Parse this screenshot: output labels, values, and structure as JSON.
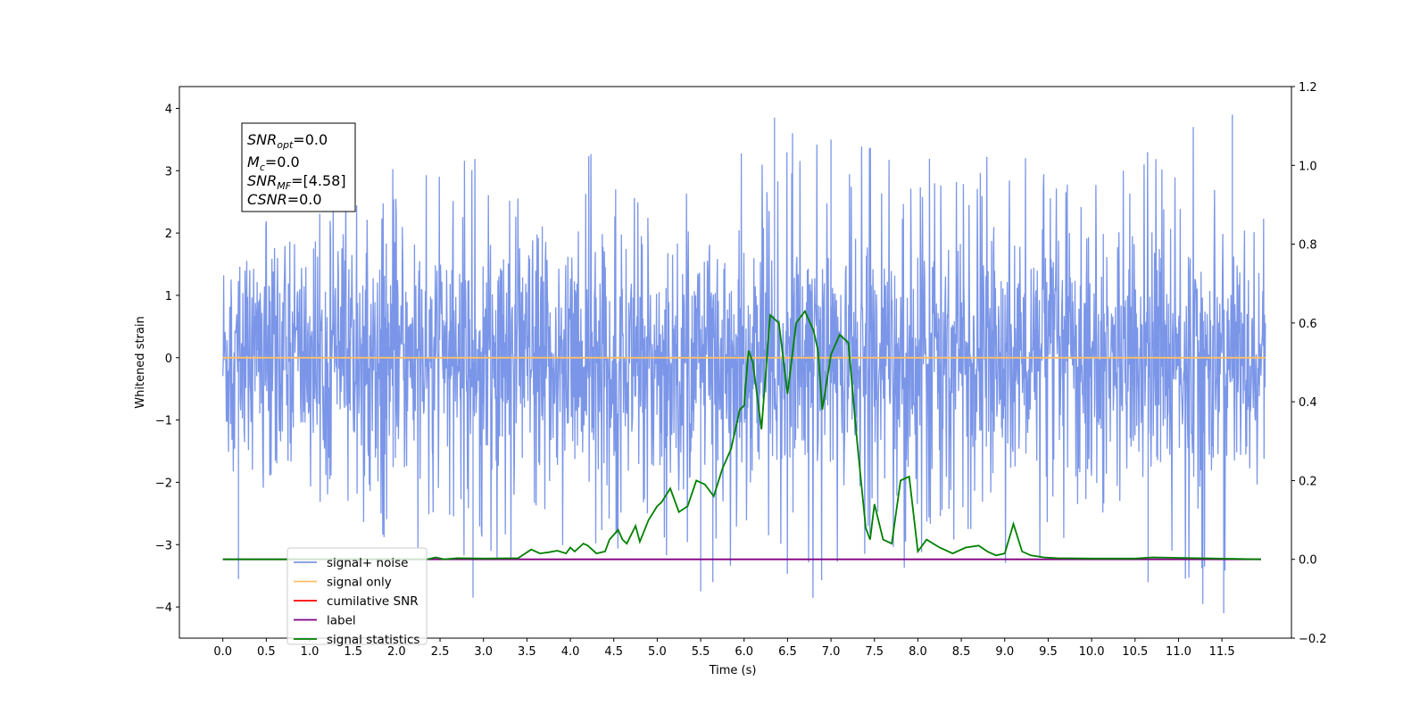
{
  "chart_data": {
    "type": "line",
    "xlabel": "Time (s)",
    "ylabel": "Whitened strain",
    "xlim": [
      -0.5,
      12.3
    ],
    "ylim": [
      -4.5,
      4.35
    ],
    "y2lim": [
      -0.2,
      1.2
    ],
    "x_ticks": [
      "0.0",
      "0.5",
      "1.0",
      "1.5",
      "2.0",
      "2.5",
      "3.0",
      "3.5",
      "4.0",
      "4.5",
      "5.0",
      "5.5",
      "6.0",
      "6.5",
      "7.0",
      "7.5",
      "8.0",
      "8.5",
      "9.0",
      "9.5",
      "10.0",
      "10.5",
      "11.0",
      "11.5"
    ],
    "y_ticks": [
      "4",
      "3",
      "2",
      "1",
      "0",
      "−1",
      "−2",
      "−3",
      "−4"
    ],
    "y2_ticks": [
      "1.2",
      "1.0",
      "0.8",
      "0.6",
      "0.4",
      "0.2",
      "0.0",
      "−0.2"
    ],
    "legend_placement": "lower-left",
    "annotation": {
      "snr_opt": {
        "base": "SNR",
        "sub": "opt",
        "value": "=0.0"
      },
      "mc": {
        "base": "M",
        "sub": "c",
        "value": "=0.0"
      },
      "snr_mf": {
        "base": "SNR",
        "sub": "MF",
        "value": "=[4.58]"
      },
      "csnr": {
        "base": "CSNR",
        "value": "=0.0"
      }
    },
    "series": [
      {
        "name": "signal+ noise",
        "color": "#7b96e8",
        "axis": "left",
        "x_range": [
          0.0,
          12.0
        ],
        "envelope": [
          1.6,
          2.2,
          2.5,
          2.9,
          3.2,
          3.0,
          3.4,
          3.0,
          3.1,
          3.3,
          3.0,
          3.2,
          3.4,
          3.1,
          3.9,
          3.5,
          3.4,
          3.2,
          3.0,
          3.4,
          3.3,
          3.1,
          3.2,
          3.4,
          3.9,
          2.3
        ],
        "outliers": [
          [
            0.18,
            -3.55
          ],
          [
            2.88,
            -3.85
          ],
          [
            5.5,
            -3.75
          ],
          [
            5.64,
            -3.6
          ],
          [
            6.35,
            3.85
          ],
          [
            10.65,
            -3.6
          ],
          [
            11.28,
            -3.95
          ],
          [
            11.52,
            -4.1
          ],
          [
            11.62,
            3.9
          ],
          [
            7.0,
            3.5
          ]
        ]
      },
      {
        "name": "signal only",
        "color": "#ffbf66",
        "axis": "left",
        "x": [
          0.0,
          12.0
        ],
        "y": [
          0.0,
          0.0
        ]
      },
      {
        "name": "cumilative SNR",
        "color": "#ff0000",
        "axis": "right",
        "x": [],
        "y": []
      },
      {
        "name": "label",
        "color": "#800080",
        "axis": "right",
        "x": [
          0.0,
          11.95
        ],
        "y": [
          0.0,
          0.0
        ]
      },
      {
        "name": "signal statistics",
        "color": "#008000",
        "axis": "right",
        "x": [
          0.0,
          2.0,
          2.35,
          2.45,
          2.55,
          2.7,
          3.0,
          3.4,
          3.55,
          3.65,
          3.75,
          3.85,
          3.95,
          4.0,
          4.05,
          4.1,
          4.15,
          4.2,
          4.3,
          4.4,
          4.45,
          4.55,
          4.6,
          4.65,
          4.75,
          4.8,
          4.9,
          5.0,
          5.05,
          5.15,
          5.25,
          5.35,
          5.45,
          5.55,
          5.65,
          5.75,
          5.85,
          5.95,
          6.0,
          6.05,
          6.1,
          6.2,
          6.3,
          6.4,
          6.5,
          6.6,
          6.7,
          6.8,
          6.85,
          6.9,
          7.0,
          7.1,
          7.2,
          7.3,
          7.4,
          7.45,
          7.5,
          7.6,
          7.7,
          7.8,
          7.9,
          8.0,
          8.1,
          8.25,
          8.4,
          8.55,
          8.7,
          8.8,
          8.9,
          9.0,
          9.1,
          9.2,
          9.3,
          9.45,
          9.6,
          10.0,
          10.5,
          10.7,
          11.95
        ],
        "y": [
          0.0,
          0.0,
          0.0,
          0.005,
          0.0,
          0.003,
          0.002,
          0.003,
          0.025,
          0.015,
          0.018,
          0.022,
          0.015,
          0.03,
          0.02,
          0.03,
          0.04,
          0.035,
          0.015,
          0.02,
          0.05,
          0.075,
          0.05,
          0.04,
          0.085,
          0.045,
          0.1,
          0.135,
          0.145,
          0.18,
          0.12,
          0.135,
          0.2,
          0.19,
          0.16,
          0.23,
          0.28,
          0.38,
          0.39,
          0.53,
          0.5,
          0.33,
          0.62,
          0.6,
          0.42,
          0.6,
          0.63,
          0.58,
          0.53,
          0.38,
          0.52,
          0.57,
          0.55,
          0.3,
          0.08,
          0.05,
          0.14,
          0.05,
          0.04,
          0.2,
          0.21,
          0.02,
          0.05,
          0.03,
          0.015,
          0.03,
          0.035,
          0.02,
          0.01,
          0.015,
          0.09,
          0.02,
          0.01,
          0.005,
          0.003,
          0.002,
          0.002,
          0.005,
          0.0
        ]
      }
    ]
  }
}
